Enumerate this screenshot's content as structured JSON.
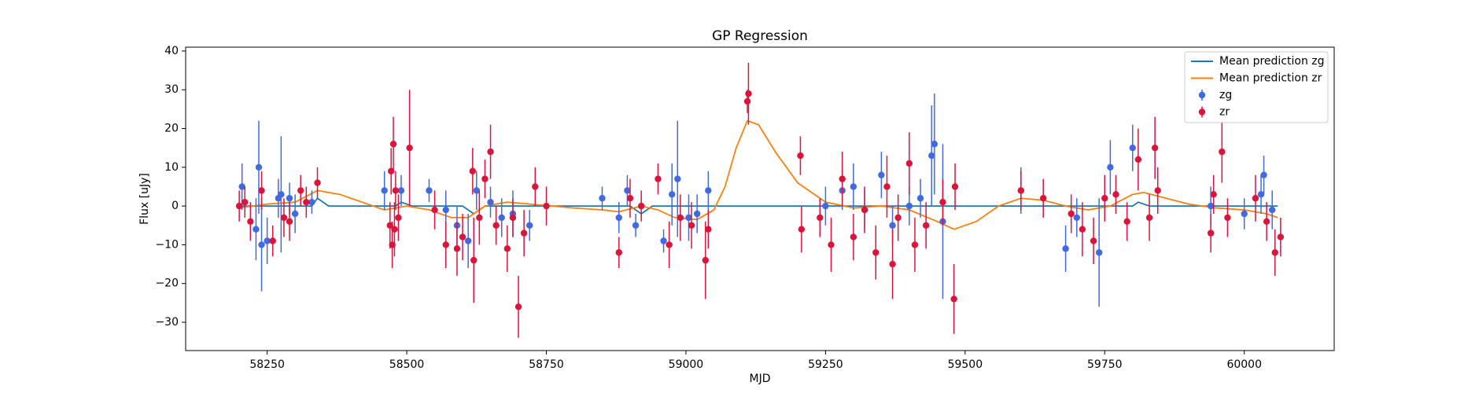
{
  "chart_data": {
    "type": "scatter",
    "title": "GP Regression",
    "x_label": "MJD",
    "y_label": "Flux [uJy]",
    "xlim": [
      58104,
      60161
    ],
    "ylim": [
      -37.3,
      41
    ],
    "xticks": [
      58250,
      58500,
      58750,
      59000,
      59250,
      59500,
      59750,
      60000
    ],
    "yticks": [
      {
        "value": -30,
        "label": "−30"
      },
      {
        "value": -20,
        "label": "−20"
      },
      {
        "value": -10,
        "label": "−10"
      },
      0,
      10,
      20,
      30,
      40
    ],
    "legend": "upper right",
    "series": [
      {
        "name": "Mean prediction zg",
        "type": "line",
        "color": "#1f77b4",
        "x": [
          58200,
          58330,
          58340,
          58360,
          58480,
          58490,
          58510,
          58600,
          58620,
          58640,
          58900,
          58920,
          58940,
          59800,
          59810,
          59830,
          60060
        ],
        "values": [
          0,
          0,
          2,
          0,
          0,
          1,
          0,
          0,
          -2,
          0,
          0,
          -2,
          0,
          0,
          1,
          0,
          0
        ]
      },
      {
        "name": "Mean prediction zr",
        "type": "line",
        "color": "#ff7f0e",
        "x": [
          58200,
          58250,
          58300,
          58340,
          58380,
          58420,
          58460,
          58500,
          58540,
          58580,
          58610,
          58640,
          58680,
          58720,
          58760,
          58800,
          58850,
          58880,
          58920,
          58950,
          58980,
          59020,
          59050,
          59070,
          59090,
          59110,
          59130,
          59160,
          59200,
          59250,
          59300,
          59350,
          59400,
          59450,
          59480,
          59520,
          59560,
          59600,
          59640,
          59680,
          59720,
          59760,
          59800,
          59820,
          59860,
          59900,
          59950,
          60000,
          60040,
          60060
        ],
        "values": [
          -0.5,
          0.5,
          1,
          4,
          3,
          1,
          -1,
          0,
          -1,
          -3,
          -3,
          0,
          1,
          0.5,
          0,
          -0.5,
          -1,
          -1.5,
          0,
          -1,
          -3,
          -3.5,
          -1,
          5,
          15,
          22,
          21,
          14,
          6,
          1,
          -0.5,
          0,
          -1,
          -4,
          -6,
          -4,
          0,
          2,
          1.5,
          0,
          -1,
          0,
          3,
          3.5,
          2,
          0.5,
          -0.5,
          -1,
          -2,
          -3
        ]
      },
      {
        "name": "zg",
        "type": "errorbar",
        "color": "#4169e1",
        "x": [
          58205,
          58230,
          58235,
          58240,
          58250,
          58270,
          58275,
          58290,
          58300,
          58330,
          58460,
          58490,
          58540,
          58570,
          58590,
          58610,
          58625,
          58650,
          58670,
          58690,
          58720,
          58850,
          58880,
          58895,
          58910,
          58960,
          58975,
          58985,
          59005,
          59020,
          59040,
          59250,
          59280,
          59300,
          59320,
          59350,
          59370,
          59400,
          59420,
          59440,
          59445,
          59460,
          59600,
          59680,
          59700,
          59740,
          59760,
          59800,
          59940,
          60000,
          60030,
          60035,
          60050
        ],
        "values": [
          5,
          -6,
          10,
          -10,
          -9,
          2,
          3,
          2,
          -2,
          1,
          4,
          4,
          4,
          -1,
          -5,
          -9,
          4,
          1,
          -3,
          -2,
          -5,
          2,
          -3,
          4,
          -5,
          -9,
          3,
          7,
          -3,
          -2,
          4,
          0,
          4,
          5,
          -1,
          8,
          -5,
          0,
          2,
          13,
          16,
          -4,
          4,
          -11,
          -3,
          -12,
          10,
          15,
          0,
          -2,
          3,
          8,
          -1
        ],
        "errors": [
          6,
          8,
          12,
          12,
          6,
          5,
          15,
          4,
          5,
          3,
          5,
          4,
          3,
          5,
          5,
          7,
          5,
          4,
          5,
          6,
          4,
          3,
          4,
          4,
          3,
          3,
          8,
          15,
          6,
          5,
          5,
          5,
          5,
          6,
          5,
          6,
          5,
          5,
          5,
          13,
          13,
          20,
          6,
          6,
          5,
          14,
          7,
          6,
          5,
          4,
          5,
          5,
          5
        ]
      },
      {
        "name": "zr",
        "type": "errorbar",
        "color": "#dc143c",
        "x": [
          58200,
          58210,
          58220,
          58240,
          58260,
          58280,
          58290,
          58310,
          58320,
          58340,
          58470,
          58472,
          58474,
          58476,
          58478,
          58480,
          58485,
          58505,
          58550,
          58570,
          58590,
          58600,
          58618,
          58620,
          58630,
          58640,
          58650,
          58660,
          58680,
          58690,
          58700,
          58710,
          58730,
          58750,
          58880,
          58900,
          58920,
          58950,
          58970,
          58990,
          59010,
          59035,
          59040,
          59110,
          59112,
          59205,
          59207,
          59240,
          59260,
          59280,
          59300,
          59320,
          59340,
          59360,
          59370,
          59380,
          59400,
          59410,
          59430,
          59460,
          59480,
          59482,
          59600,
          59640,
          59690,
          59710,
          59730,
          59750,
          59770,
          59790,
          59810,
          59830,
          59840,
          59845,
          59940,
          59945,
          59960,
          59970,
          60020,
          60040,
          60055,
          60065
        ],
        "values": [
          0,
          1,
          -4,
          4,
          -9,
          -3,
          -4,
          4,
          1,
          6,
          -5,
          9,
          -10,
          16,
          -6,
          4,
          -3,
          15,
          -1,
          -10,
          -11,
          -8,
          9,
          -14,
          -3,
          7,
          14,
          -5,
          -11,
          -3,
          -26,
          -7,
          5,
          0,
          -12,
          2,
          0,
          7,
          -10,
          -3,
          -5,
          -14,
          -6,
          27,
          29,
          13,
          -6,
          -3,
          -10,
          7,
          -8,
          -1,
          -12,
          5,
          -15,
          -3,
          11,
          -10,
          -5,
          1,
          -24,
          5,
          4,
          2,
          -2,
          -6,
          -9,
          2,
          3,
          -4,
          12,
          -3,
          15,
          4,
          -7,
          3,
          14,
          -3,
          2,
          -4,
          -12,
          -8
        ],
        "errors": [
          4,
          4,
          5,
          5,
          4,
          5,
          5,
          4,
          4,
          4,
          6,
          6,
          6,
          7,
          7,
          5,
          6,
          15,
          5,
          6,
          7,
          6,
          6,
          11,
          7,
          5,
          7,
          5,
          6,
          5,
          8,
          6,
          5,
          5,
          4,
          5,
          4,
          4,
          6,
          6,
          6,
          10,
          5,
          3,
          8,
          5,
          6,
          5,
          7,
          7,
          6,
          6,
          7,
          8,
          9,
          6,
          8,
          7,
          6,
          6,
          9,
          6,
          5,
          5,
          5,
          7,
          6,
          6,
          5,
          5,
          8,
          6,
          8,
          6,
          5,
          5,
          8,
          5,
          6,
          5,
          6,
          5
        ]
      }
    ]
  }
}
